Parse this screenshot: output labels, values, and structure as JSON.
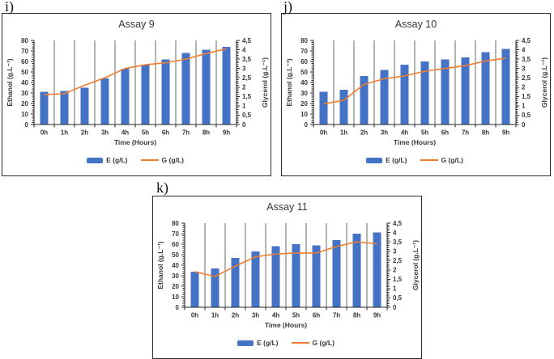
{
  "figure": {
    "background": "#ffffff",
    "styles": {
      "bar_color": "#4472C4",
      "line_color": "#ED7D31",
      "grid_color": "#6a6a6a",
      "axis_color": "#262626",
      "text_color": "#383838"
    }
  },
  "chart_data": [
    {
      "panel_letter": "i)",
      "type": "bar",
      "title": "Assay 9",
      "categories": [
        "0h",
        "1h",
        "2h",
        "3h",
        "4h",
        "5h",
        "6h",
        "7h",
        "8h",
        "9h"
      ],
      "series": [
        {
          "name": "E (g/L)",
          "type": "bar",
          "axis": "left",
          "color": "#4472C4",
          "values": [
            31,
            32,
            35,
            44,
            53,
            57,
            62,
            68,
            71,
            74
          ]
        },
        {
          "name": "G (g/L)",
          "type": "line",
          "axis": "right",
          "color": "#ED7D31",
          "values": [
            1.6,
            1.65,
            2.1,
            2.5,
            3.0,
            3.2,
            3.3,
            3.5,
            3.8,
            4.05
          ]
        }
      ],
      "xlabel": "Time (Hours)",
      "ylabel_left": "Ethanol (g.L⁻¹)",
      "ylabel_right": "Glycerol (g.L⁻¹)",
      "ylim_left": [
        0,
        80
      ],
      "ylim_right": [
        0,
        4.5
      ],
      "yticks_left": [
        "0",
        "10",
        "20",
        "30",
        "40",
        "50",
        "60",
        "70",
        "80"
      ],
      "yticks_right": [
        "0",
        "0,5",
        "1",
        "1,5",
        "2",
        "2,5",
        "3",
        "3,5",
        "4",
        "4,5"
      ],
      "grid": "vertical-category-boundaries",
      "legend_position": "bottom"
    },
    {
      "panel_letter": "j)",
      "type": "bar",
      "title": "Assay 10",
      "categories": [
        "0h",
        "1h",
        "2h",
        "3h",
        "4h",
        "5h",
        "6h",
        "7h",
        "8h",
        "9h"
      ],
      "series": [
        {
          "name": "E (g/L)",
          "type": "bar",
          "axis": "left",
          "color": "#4472C4",
          "values": [
            31,
            33,
            46,
            52,
            57,
            60,
            62,
            64,
            69,
            72
          ]
        },
        {
          "name": "G (g/L)",
          "type": "line",
          "axis": "right",
          "color": "#ED7D31",
          "values": [
            1.1,
            1.3,
            2.15,
            2.45,
            2.6,
            2.85,
            3.0,
            3.15,
            3.4,
            3.55
          ]
        }
      ],
      "xlabel": "Time (Hours)",
      "ylabel_left": "Ethanol (g.L⁻¹)",
      "ylabel_right": "Glycerol (g.L⁻¹)",
      "ylim_left": [
        0,
        80
      ],
      "ylim_right": [
        0,
        4.5
      ],
      "yticks_left": [
        "0",
        "10",
        "20",
        "30",
        "40",
        "50",
        "60",
        "70",
        "80"
      ],
      "yticks_right": [
        "0",
        "0,5",
        "1",
        "1,5",
        "2",
        "2,5",
        "3",
        "3,5",
        "4",
        "4,5"
      ],
      "grid": "vertical-category-boundaries",
      "legend_position": "bottom"
    },
    {
      "panel_letter": "k)",
      "type": "bar",
      "title": "Assay 11",
      "categories": [
        "0h",
        "1h",
        "2h",
        "3h",
        "4h",
        "5h",
        "6h",
        "7h",
        "8h",
        "9h"
      ],
      "series": [
        {
          "name": "E (g/L)",
          "type": "bar",
          "axis": "left",
          "color": "#4472C4",
          "values": [
            34,
            37,
            47,
            53,
            58,
            60,
            59,
            64,
            70,
            71
          ]
        },
        {
          "name": "G (g/L)",
          "type": "line",
          "axis": "right",
          "color": "#ED7D31",
          "values": [
            1.9,
            1.65,
            2.2,
            2.7,
            2.85,
            2.9,
            2.9,
            3.25,
            3.5,
            3.4
          ]
        }
      ],
      "xlabel": "Time (Hours)",
      "ylabel_left": "Ethanol (g.L⁻¹)",
      "ylabel_right": "Glycerol (g.L⁻¹)",
      "ylim_left": [
        0,
        80
      ],
      "ylim_right": [
        0,
        4.5
      ],
      "yticks_left": [
        "0",
        "10",
        "20",
        "30",
        "40",
        "50",
        "60",
        "70",
        "80"
      ],
      "yticks_right": [
        "0",
        "0,5",
        "1",
        "1,5",
        "2",
        "2,5",
        "3",
        "3,5",
        "4",
        "4,5"
      ],
      "grid": "vertical-category-boundaries",
      "legend_position": "bottom"
    }
  ]
}
